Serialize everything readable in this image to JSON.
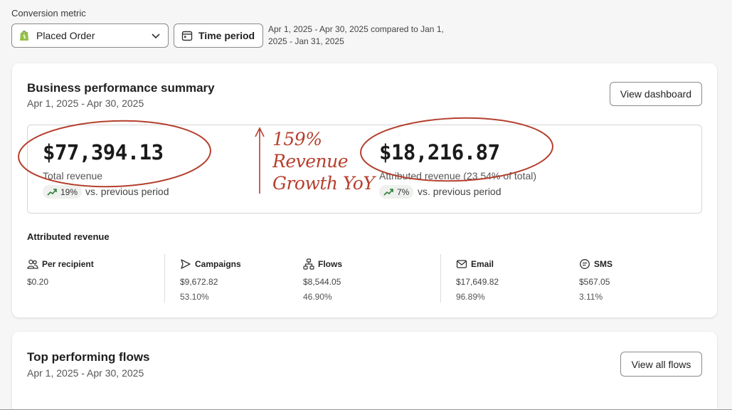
{
  "filters": {
    "conversion_metric_label": "Conversion metric",
    "selected_metric": "Placed Order",
    "time_period_button": "Time period",
    "period_description": "Apr 1, 2025 - Apr 30, 2025 compared to Jan 1, 2025 - Jan 31, 2025"
  },
  "summary": {
    "title": "Business performance summary",
    "date_range": "Apr 1, 2025 - Apr 30, 2025",
    "view_dashboard_button": "View dashboard",
    "total_revenue": {
      "value": "$77,394.13",
      "label": "Total revenue",
      "change": "19%",
      "comparison": "vs. previous period"
    },
    "attributed_revenue": {
      "value": "$18,216.87",
      "label": "Attributed revenue (23.54% of total)",
      "change": "7%",
      "comparison": "vs. previous period"
    },
    "annotation": {
      "line1": "159%",
      "line2": "Revenue",
      "line3": "Growth YoY",
      "color": "#b5402e"
    },
    "breakdown_title": "Attributed revenue",
    "breakdown": [
      {
        "label": "Per recipient",
        "icon": "people-icon",
        "value": "$0.20",
        "percent": ""
      },
      {
        "label": "Campaigns",
        "icon": "send-icon",
        "value": "$9,672.82",
        "percent": "53.10%"
      },
      {
        "label": "Flows",
        "icon": "flow-icon",
        "value": "$8,544.05",
        "percent": "46.90%"
      },
      {
        "label": "Email",
        "icon": "mail-icon",
        "value": "$17,649.82",
        "percent": "96.89%"
      },
      {
        "label": "SMS",
        "icon": "chat-icon",
        "value": "$567.05",
        "percent": "3.11%"
      }
    ]
  },
  "flows": {
    "title": "Top performing flows",
    "date_range": "Apr 1, 2025 - Apr 30, 2025",
    "view_all_button": "View all flows"
  },
  "colors": {
    "accent_green": "#2e7d3a",
    "annotation_red": "#b5402e"
  }
}
